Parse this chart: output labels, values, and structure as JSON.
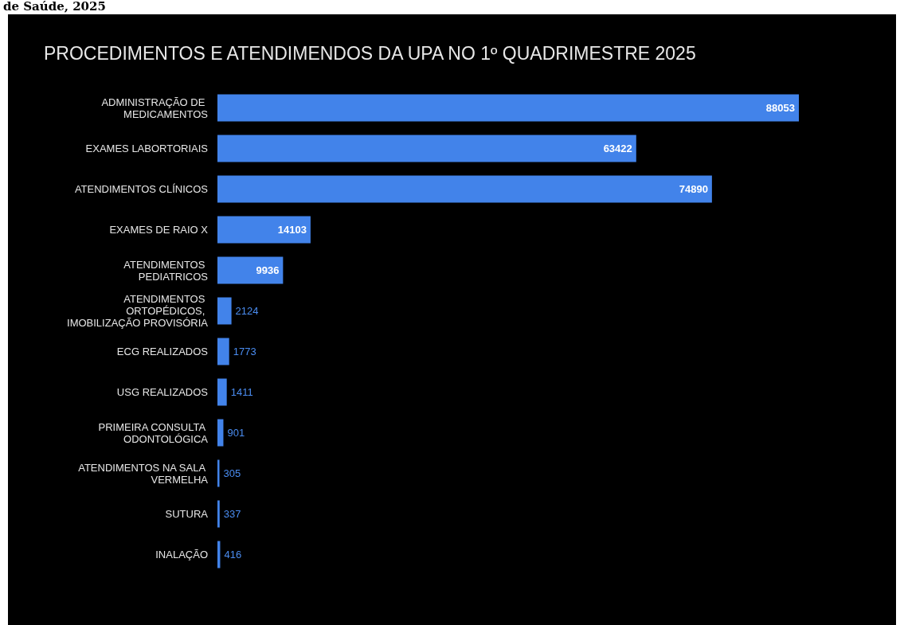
{
  "chart_data": {
    "type": "bar",
    "orientation": "horizontal",
    "title": "PROCEDIMENTOS E ATENDIMENDOS DA UPA NO 1º QUADRIMESTRE 2025",
    "annotations": [
      "de Saúde, 2025"
    ],
    "categories": [
      "ADMINISTRAÇÃO DE MEDICAMENTOS",
      "EXAMES LABORTORIAIS",
      "ATENDIMENTOS CLÍNICOS",
      "EXAMES DE RAIO X",
      "ATENDIMENTOS PEDIATRICOS",
      "ATENDIMENTOS ORTOPÉDICOS, IMOBILIZAÇÃO PROVISÓRIA",
      "ECG REALIZADOS",
      "USG REALIZADOS",
      "PRIMEIRA CONSULTA ODONTOLÓGICA",
      "ATENDIMENTOS NA SALA VERMELHA",
      "SUTURA",
      "INALAÇÃO"
    ],
    "values": [
      88053,
      63422,
      74890,
      14103,
      9936,
      2124,
      1773,
      1411,
      901,
      305,
      337,
      416
    ],
    "color": "#4283ea",
    "data_labels": true,
    "tick_labels": "y"
  }
}
